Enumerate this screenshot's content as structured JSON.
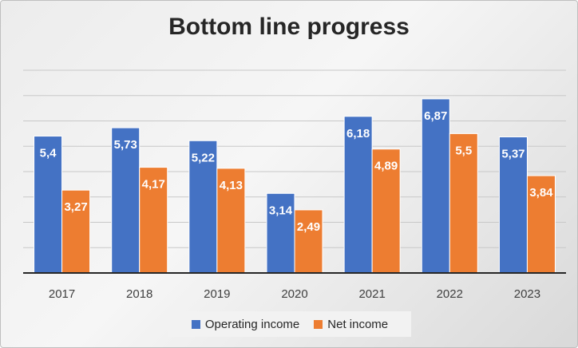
{
  "chart_data": {
    "type": "bar",
    "title": "Bottom line progress",
    "categories": [
      "2017",
      "2018",
      "2019",
      "2020",
      "2021",
      "2022",
      "2023"
    ],
    "series": [
      {
        "name": "Operating income",
        "color": "#4472c4",
        "values": [
          5.4,
          5.73,
          5.22,
          3.14,
          6.18,
          6.87,
          5.37
        ],
        "labels": [
          "5,4",
          "5,73",
          "5,22",
          "3,14",
          "6,18",
          "6,87",
          "5,37"
        ]
      },
      {
        "name": "Net income",
        "color": "#ed7d31",
        "values": [
          3.27,
          4.17,
          4.13,
          2.49,
          4.89,
          5.5,
          3.84
        ],
        "labels": [
          "3,27",
          "4,17",
          "4,13",
          "2,49",
          "4,89",
          "5,5",
          "3,84"
        ]
      }
    ],
    "ylim": [
      0,
      8
    ],
    "grid": true,
    "legend_position": "bottom",
    "xlabel": "",
    "ylabel": ""
  }
}
